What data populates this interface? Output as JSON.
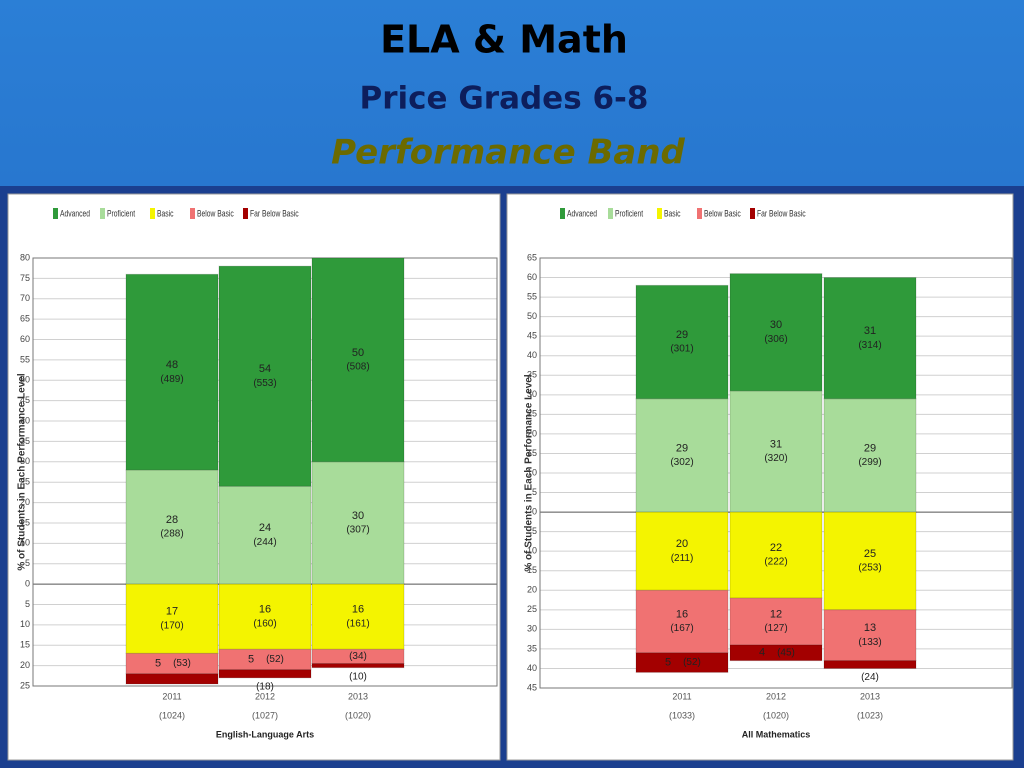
{
  "header": {
    "title": "ELA & Math",
    "subtitle": "Price Grades 6-8",
    "band": "Performance Band"
  },
  "chart_data": [
    {
      "type": "bar",
      "stacked": true,
      "grid": true,
      "x_label": "English-Language Arts",
      "y_label": "% of Students in Each Performance Level",
      "categories": [
        "2011",
        "2012",
        "2013"
      ],
      "category_notes": [
        "(1024)",
        "(1027)",
        "(1020)"
      ],
      "ylim": [
        -25,
        80
      ],
      "yticks": [
        80,
        75,
        70,
        65,
        60,
        55,
        50,
        45,
        40,
        35,
        30,
        25,
        20,
        15,
        10,
        5,
        0,
        {
          "value": -5,
          "label": "5"
        },
        {
          "value": -10,
          "label": "10"
        },
        {
          "value": -15,
          "label": "15"
        },
        {
          "value": -20,
          "label": "20"
        },
        {
          "value": -25,
          "label": "25"
        }
      ],
      "series": [
        {
          "name": "Advanced",
          "color": "#2f9a3a",
          "values": [
            48,
            54,
            50
          ],
          "value_labels": [
            "48",
            "54",
            "50"
          ],
          "count_labels": [
            "(489)",
            "(553)",
            "(508)"
          ]
        },
        {
          "name": "Proficient",
          "color": "#a8dc9a",
          "values": [
            28,
            24,
            30
          ],
          "value_labels": [
            "28",
            "24",
            "30"
          ],
          "count_labels": [
            "(288)",
            "(244)",
            "(307)"
          ]
        },
        {
          "name": "Basic",
          "color": "#f4f400",
          "values": [
            -17,
            -16,
            -16
          ],
          "value_labels": [
            "17",
            "16",
            "16"
          ],
          "count_labels": [
            "(170)",
            "(160)",
            "(161)"
          ]
        },
        {
          "name": "Below Basic",
          "color": "#f07272",
          "values": [
            -5,
            -5,
            -3.5
          ],
          "value_labels": [
            "5",
            "5",
            null
          ],
          "count_labels": [
            "(53)",
            "(52)",
            "(34)"
          ]
        },
        {
          "name": "Far Below Basic",
          "color": "#a30000",
          "values": [
            -2.5,
            -2,
            -1
          ],
          "value_labels": [
            null,
            null,
            null
          ],
          "count_labels": [
            null,
            "(18)",
            "(10)"
          ]
        }
      ]
    },
    {
      "type": "bar",
      "stacked": true,
      "grid": true,
      "x_label": "All Mathematics",
      "y_label": "% of Students in Each Performance Level",
      "categories": [
        "2011",
        "2012",
        "2013"
      ],
      "category_notes": [
        "(1033)",
        "(1020)",
        "(1023)"
      ],
      "ylim": [
        -45,
        65
      ],
      "yticks": [
        65,
        60,
        55,
        50,
        45,
        40,
        35,
        30,
        25,
        20,
        15,
        10,
        5,
        0,
        {
          "value": -5,
          "label": "5"
        },
        {
          "value": -10,
          "label": "10"
        },
        {
          "value": -15,
          "label": "15"
        },
        {
          "value": -20,
          "label": "20"
        },
        {
          "value": -25,
          "label": "25"
        },
        {
          "value": -30,
          "label": "30"
        },
        {
          "value": -35,
          "label": "35"
        },
        {
          "value": -40,
          "label": "40"
        },
        {
          "value": -45,
          "label": "45"
        }
      ],
      "series": [
        {
          "name": "Advanced",
          "color": "#2f9a3a",
          "values": [
            29,
            30,
            31
          ],
          "value_labels": [
            "29",
            "30",
            "31"
          ],
          "count_labels": [
            "(301)",
            "(306)",
            "(314)"
          ]
        },
        {
          "name": "Proficient",
          "color": "#a8dc9a",
          "values": [
            29,
            31,
            29
          ],
          "value_labels": [
            "29",
            "31",
            "29"
          ],
          "count_labels": [
            "(302)",
            "(320)",
            "(299)"
          ]
        },
        {
          "name": "Basic",
          "color": "#f4f400",
          "values": [
            -20,
            -22,
            -25
          ],
          "value_labels": [
            "20",
            "22",
            "25"
          ],
          "count_labels": [
            "(211)",
            "(222)",
            "(253)"
          ]
        },
        {
          "name": "Below Basic",
          "color": "#f07272",
          "values": [
            -16,
            -12,
            -13
          ],
          "value_labels": [
            "16",
            "12",
            "13"
          ],
          "count_labels": [
            "(167)",
            "(127)",
            "(133)"
          ]
        },
        {
          "name": "Far Below Basic",
          "color": "#a30000",
          "values": [
            -5,
            -4,
            -2
          ],
          "value_labels": [
            "5",
            "4",
            null
          ],
          "count_labels": [
            "(52)",
            "(45)",
            "(24)"
          ]
        }
      ]
    }
  ]
}
